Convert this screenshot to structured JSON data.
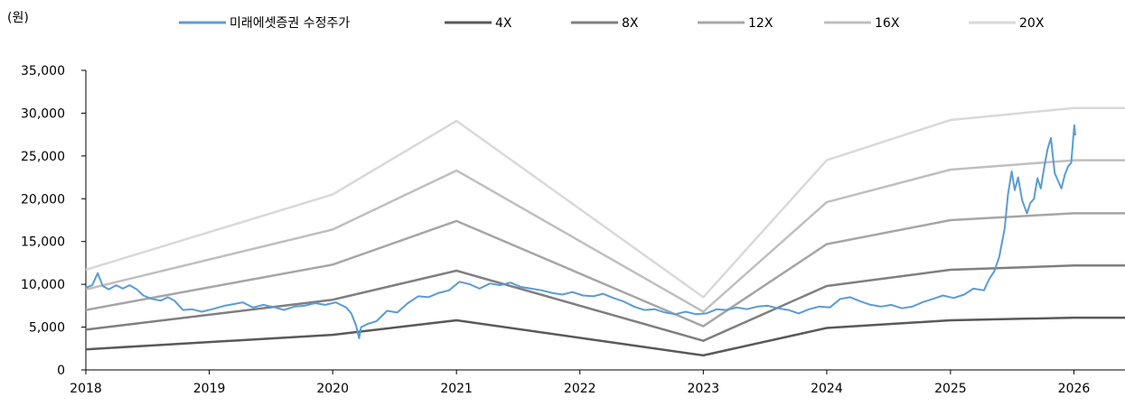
{
  "chart_data": {
    "type": "line",
    "ylabel": "(원)",
    "ylim": [
      0,
      35000
    ],
    "yticks": [
      0,
      5000,
      10000,
      15000,
      20000,
      25000,
      30000,
      35000
    ],
    "ytick_labels": [
      "0",
      "5,000",
      "10,000",
      "15,000",
      "20,000",
      "25,000",
      "30,000",
      "35,000"
    ],
    "xlim": [
      "2018-01-01",
      "2026-06-01"
    ],
    "xticks": [
      "2018-01-01",
      "2019-01-01",
      "2020-01-01",
      "2021-01-01",
      "2022-01-01",
      "2023-01-01",
      "2024-01-01",
      "2025-01-01",
      "2026-01-01"
    ],
    "xtick_labels": [
      "2018",
      "2019",
      "2020",
      "2021",
      "2022",
      "2023",
      "2024",
      "2025",
      "2026"
    ],
    "grid": false,
    "legend_position": "top",
    "series": [
      {
        "name": "미래에셋증권  수정주가",
        "color": "#5b9bd5",
        "points": [
          [
            "2018-01-01",
            9600
          ],
          [
            "2018-01-20",
            9900
          ],
          [
            "2018-02-05",
            11300
          ],
          [
            "2018-02-20",
            9800
          ],
          [
            "2018-03-10",
            9400
          ],
          [
            "2018-04-01",
            9900
          ],
          [
            "2018-04-20",
            9500
          ],
          [
            "2018-05-10",
            9900
          ],
          [
            "2018-06-01",
            9400
          ],
          [
            "2018-06-20",
            8700
          ],
          [
            "2018-07-15",
            8300
          ],
          [
            "2018-08-10",
            8100
          ],
          [
            "2018-09-01",
            8500
          ],
          [
            "2018-09-20",
            8100
          ],
          [
            "2018-10-15",
            7000
          ],
          [
            "2018-11-10",
            7100
          ],
          [
            "2018-12-10",
            6800
          ],
          [
            "2019-01-10",
            7100
          ],
          [
            "2019-02-15",
            7500
          ],
          [
            "2019-03-15",
            7700
          ],
          [
            "2019-04-10",
            7900
          ],
          [
            "2019-05-10",
            7300
          ],
          [
            "2019-06-10",
            7600
          ],
          [
            "2019-07-15",
            7300
          ],
          [
            "2019-08-10",
            7000
          ],
          [
            "2019-09-10",
            7400
          ],
          [
            "2019-10-10",
            7500
          ],
          [
            "2019-11-10",
            7800
          ],
          [
            "2019-12-10",
            7600
          ],
          [
            "2020-01-10",
            7900
          ],
          [
            "2020-02-10",
            7300
          ],
          [
            "2020-02-25",
            6600
          ],
          [
            "2020-03-10",
            5200
          ],
          [
            "2020-03-19",
            3700
          ],
          [
            "2020-03-25",
            5000
          ],
          [
            "2020-04-15",
            5400
          ],
          [
            "2020-05-10",
            5700
          ],
          [
            "2020-06-10",
            6900
          ],
          [
            "2020-07-10",
            6700
          ],
          [
            "2020-08-10",
            7800
          ],
          [
            "2020-09-10",
            8600
          ],
          [
            "2020-10-10",
            8500
          ],
          [
            "2020-11-10",
            9000
          ],
          [
            "2020-12-10",
            9300
          ],
          [
            "2021-01-10",
            10300
          ],
          [
            "2021-02-10",
            10000
          ],
          [
            "2021-03-10",
            9500
          ],
          [
            "2021-04-10",
            10100
          ],
          [
            "2021-05-10",
            9900
          ],
          [
            "2021-06-10",
            10200
          ],
          [
            "2021-07-10",
            9700
          ],
          [
            "2021-08-10",
            9500
          ],
          [
            "2021-09-10",
            9300
          ],
          [
            "2021-10-10",
            9000
          ],
          [
            "2021-11-10",
            8800
          ],
          [
            "2021-12-10",
            9100
          ],
          [
            "2022-01-10",
            8700
          ],
          [
            "2022-02-10",
            8600
          ],
          [
            "2022-03-10",
            8900
          ],
          [
            "2022-04-10",
            8400
          ],
          [
            "2022-05-10",
            8000
          ],
          [
            "2022-06-10",
            7400
          ],
          [
            "2022-07-10",
            7000
          ],
          [
            "2022-08-10",
            7100
          ],
          [
            "2022-09-10",
            6700
          ],
          [
            "2022-10-10",
            6500
          ],
          [
            "2022-11-10",
            6800
          ],
          [
            "2022-12-10",
            6500
          ],
          [
            "2023-01-10",
            6600
          ],
          [
            "2023-02-10",
            7100
          ],
          [
            "2023-03-10",
            7000
          ],
          [
            "2023-04-10",
            7300
          ],
          [
            "2023-05-10",
            7100
          ],
          [
            "2023-06-10",
            7400
          ],
          [
            "2023-07-10",
            7500
          ],
          [
            "2023-08-10",
            7200
          ],
          [
            "2023-09-10",
            7000
          ],
          [
            "2023-10-10",
            6600
          ],
          [
            "2023-11-10",
            7100
          ],
          [
            "2023-12-10",
            7400
          ],
          [
            "2024-01-10",
            7300
          ],
          [
            "2024-02-10",
            8300
          ],
          [
            "2024-03-10",
            8500
          ],
          [
            "2024-04-10",
            8000
          ],
          [
            "2024-05-10",
            7600
          ],
          [
            "2024-06-10",
            7400
          ],
          [
            "2024-07-10",
            7600
          ],
          [
            "2024-08-10",
            7200
          ],
          [
            "2024-09-10",
            7400
          ],
          [
            "2024-10-10",
            7900
          ],
          [
            "2024-11-10",
            8300
          ],
          [
            "2024-12-10",
            8700
          ],
          [
            "2025-01-10",
            8400
          ],
          [
            "2025-02-10",
            8800
          ],
          [
            "2025-03-10",
            9500
          ],
          [
            "2025-04-10",
            9300
          ],
          [
            "2025-04-25",
            10600
          ],
          [
            "2025-05-10",
            11500
          ],
          [
            "2025-05-25",
            13200
          ],
          [
            "2025-06-10",
            16500
          ],
          [
            "2025-06-20",
            20500
          ],
          [
            "2025-07-01",
            23200
          ],
          [
            "2025-07-10",
            21000
          ],
          [
            "2025-07-20",
            22500
          ],
          [
            "2025-08-01",
            19800
          ],
          [
            "2025-08-15",
            18300
          ],
          [
            "2025-08-25",
            19500
          ],
          [
            "2025-09-05",
            20000
          ],
          [
            "2025-09-15",
            22400
          ],
          [
            "2025-09-25",
            21200
          ],
          [
            "2025-10-05",
            23700
          ],
          [
            "2025-10-15",
            25800
          ],
          [
            "2025-10-25",
            27100
          ],
          [
            "2025-11-05",
            23000
          ],
          [
            "2025-11-15",
            22100
          ],
          [
            "2025-11-25",
            21200
          ],
          [
            "2025-12-05",
            22800
          ],
          [
            "2025-12-15",
            23800
          ],
          [
            "2025-12-24",
            24200
          ],
          [
            "2026-01-02",
            28600
          ],
          [
            "2026-01-05",
            27400
          ]
        ]
      },
      {
        "name": "4X",
        "color": "#595959",
        "points": [
          [
            "2018-01-01",
            2400
          ],
          [
            "2020-01-01",
            4100
          ],
          [
            "2021-01-01",
            5800
          ],
          [
            "2023-01-01",
            1700
          ],
          [
            "2024-01-01",
            4900
          ],
          [
            "2025-01-01",
            5800
          ],
          [
            "2026-01-01",
            6100
          ],
          [
            "2026-06-01",
            6100
          ]
        ]
      },
      {
        "name": "8X",
        "color": "#7f7f7f",
        "points": [
          [
            "2018-01-01",
            4700
          ],
          [
            "2020-01-01",
            8200
          ],
          [
            "2021-01-01",
            11600
          ],
          [
            "2023-01-01",
            3400
          ],
          [
            "2024-01-01",
            9800
          ],
          [
            "2025-01-01",
            11700
          ],
          [
            "2026-01-01",
            12200
          ],
          [
            "2026-06-01",
            12200
          ]
        ]
      },
      {
        "name": "12X",
        "color": "#a6a6a6",
        "points": [
          [
            "2018-01-01",
            7000
          ],
          [
            "2020-01-01",
            12300
          ],
          [
            "2021-01-01",
            17400
          ],
          [
            "2023-01-01",
            5100
          ],
          [
            "2024-01-01",
            14700
          ],
          [
            "2025-01-01",
            17500
          ],
          [
            "2026-01-01",
            18300
          ],
          [
            "2026-06-01",
            18300
          ]
        ]
      },
      {
        "name": "16X",
        "color": "#bfbfbf",
        "points": [
          [
            "2018-01-01",
            9400
          ],
          [
            "2020-01-01",
            16400
          ],
          [
            "2021-01-01",
            23300
          ],
          [
            "2023-01-01",
            6800
          ],
          [
            "2024-01-01",
            19600
          ],
          [
            "2025-01-01",
            23400
          ],
          [
            "2026-01-01",
            24500
          ],
          [
            "2026-06-01",
            24500
          ]
        ]
      },
      {
        "name": "20X",
        "color": "#d9d9d9",
        "points": [
          [
            "2018-01-01",
            11700
          ],
          [
            "2020-01-01",
            20500
          ],
          [
            "2021-01-01",
            29100
          ],
          [
            "2023-01-01",
            8500
          ],
          [
            "2024-01-01",
            24500
          ],
          [
            "2025-01-01",
            29200
          ],
          [
            "2026-01-01",
            30600
          ],
          [
            "2026-06-01",
            30600
          ]
        ]
      }
    ]
  }
}
